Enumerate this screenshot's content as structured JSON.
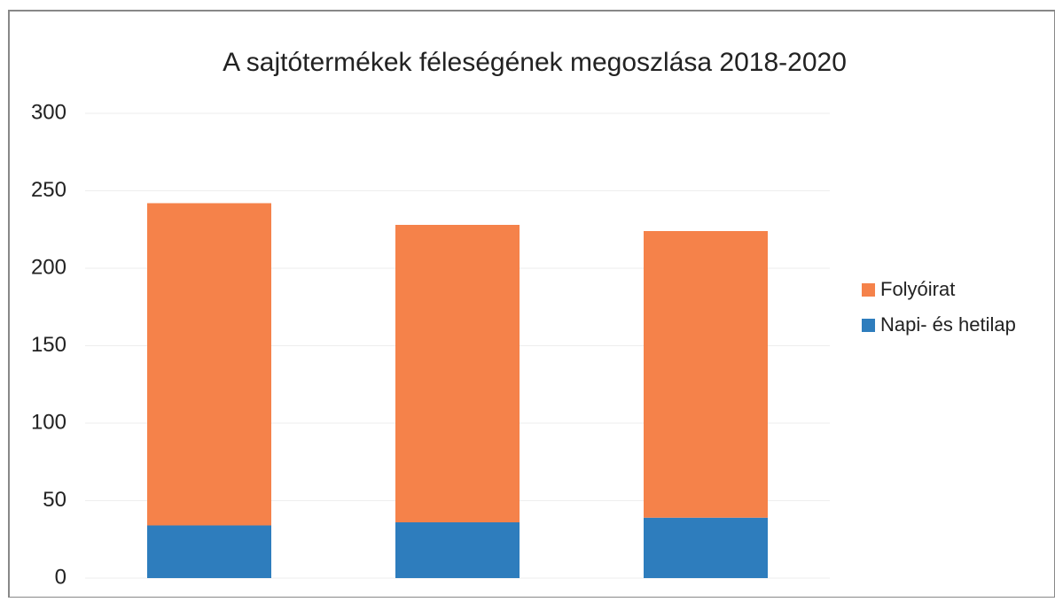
{
  "chart_data": {
    "type": "stacked_bar",
    "title": "A sajtótermékek féleségének megoszlása 2018-2020",
    "categories": [
      null,
      null,
      null
    ],
    "series": [
      {
        "name": "Napi- és hetilap",
        "color": "#2e7dbd",
        "values": [
          34,
          36,
          39
        ]
      },
      {
        "name": "Folyóirat",
        "color": "#f5824a",
        "values": [
          208,
          192,
          185
        ]
      }
    ],
    "ylim": [
      0,
      300
    ],
    "yticks": [
      0,
      50,
      100,
      150,
      200,
      250,
      300
    ],
    "grid": true,
    "legend": "right"
  }
}
